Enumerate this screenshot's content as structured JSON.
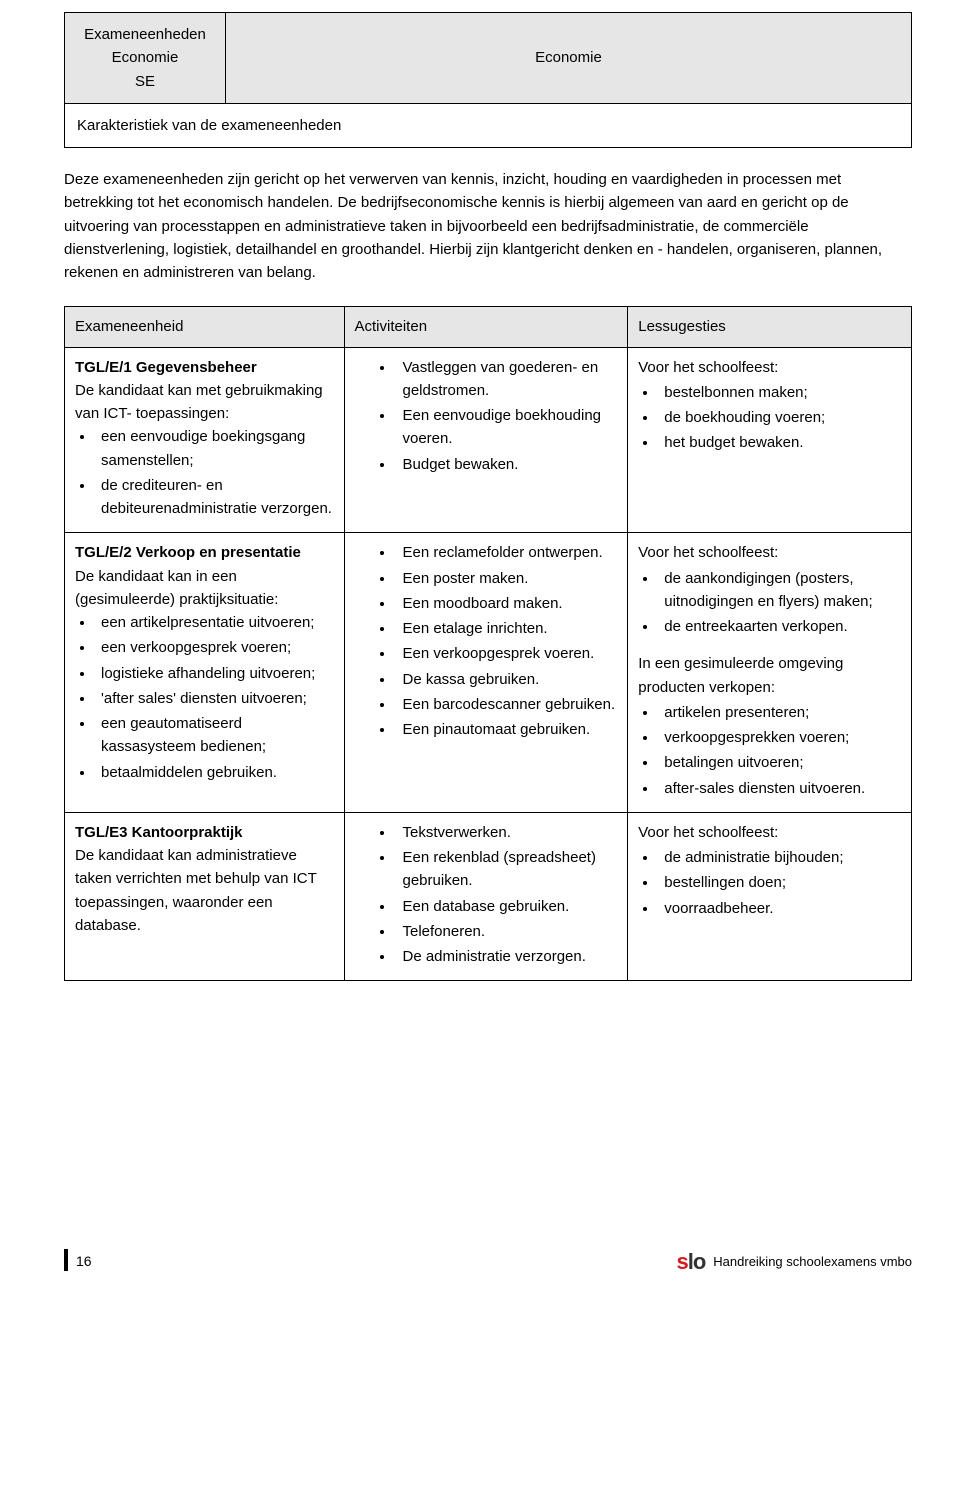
{
  "header": {
    "left_lines": [
      "Exameneenheden",
      "Economie",
      "SE"
    ],
    "right": "Economie",
    "subtitle": "Karakteristiek van de exameneenheden"
  },
  "intro": "Deze exameneenheden zijn gericht op het verwerven van kennis, inzicht, houding en vaardigheden in processen met betrekking tot het economisch handelen. De bedrijfseconomische kennis is hierbij algemeen van aard en gericht op de uitvoering van processtappen en administratieve taken in bijvoorbeeld een bedrijfsadministratie, de commerciële dienstverlening, logistiek, detailhandel en groothandel. Hierbij zijn klantgericht denken en - handelen, organiseren, plannen, rekenen en administreren van belang.",
  "columns": {
    "c1": "Exameneenheid",
    "c2": "Activiteiten",
    "c3": "Lessugesties"
  },
  "rows": [
    {
      "unit": {
        "title": "TGL/E/1 Gegevensbeheer",
        "lead": "De kandidaat kan met gebruikmaking van ICT- toepassingen:",
        "bullets": [
          "een eenvoudige boekingsgang samenstellen;",
          "de crediteuren- en debiteurenadministratie verzorgen."
        ]
      },
      "acts": [
        "Vastleggen van goederen- en geldstromen.",
        "Een eenvoudige boekhouding voeren.",
        "Budget bewaken."
      ],
      "sugg": {
        "lead": "Voor het schoolfeest:",
        "bullets": [
          "bestelbonnen maken;",
          "de boekhouding voeren;",
          "het budget bewaken."
        ]
      }
    },
    {
      "unit": {
        "title": "TGL/E/2 Verkoop en presentatie",
        "lead": "De kandidaat kan in een (gesimuleerde) praktijksituatie:",
        "bullets": [
          "een artikelpresentatie uitvoeren;",
          "een verkoopgesprek voeren;",
          "logistieke afhandeling uitvoeren;",
          "'after sales' diensten uitvoeren;",
          "een geautomatiseerd kassasysteem bedienen;",
          "betaalmiddelen gebruiken."
        ]
      },
      "acts": [
        "Een reclamefolder ontwerpen.",
        "Een poster maken.",
        "Een moodboard maken.",
        "Een etalage inrichten.",
        "Een verkoopgesprek voeren.",
        "De kassa gebruiken.",
        "Een barcodescanner gebruiken.",
        "Een pinautomaat gebruiken."
      ],
      "sugg": {
        "lead": "Voor het schoolfeest:",
        "bullets": [
          "de aankondigingen (posters, uitnodigingen en flyers) maken;",
          "de entreekaarten verkopen."
        ],
        "lead2": "In een gesimuleerde omgeving producten verkopen:",
        "bullets2": [
          "artikelen presenteren;",
          "verkoopgesprekken voeren;",
          "betalingen uitvoeren;",
          "after-sales diensten uitvoeren."
        ]
      }
    },
    {
      "unit": {
        "title": "TGL/E3 Kantoorpraktijk",
        "lead": "De kandidaat kan administratieve taken verrichten met behulp van ICT toepassingen, waaronder een database.",
        "bullets": []
      },
      "acts": [
        "Tekstverwerken.",
        "Een rekenblad (spreadsheet) gebruiken.",
        "Een database gebruiken.",
        "Telefoneren.",
        "De administratie verzorgen."
      ],
      "sugg": {
        "lead": "Voor het schoolfeest:",
        "bullets": [
          "de administratie bijhouden;",
          "bestellingen doen;",
          "voorraadbeheer."
        ]
      }
    }
  ],
  "footer": {
    "page": "16",
    "text": "Handreiking schoolexamens vmbo",
    "logo_s": "s",
    "logo_lo": "lo"
  }
}
